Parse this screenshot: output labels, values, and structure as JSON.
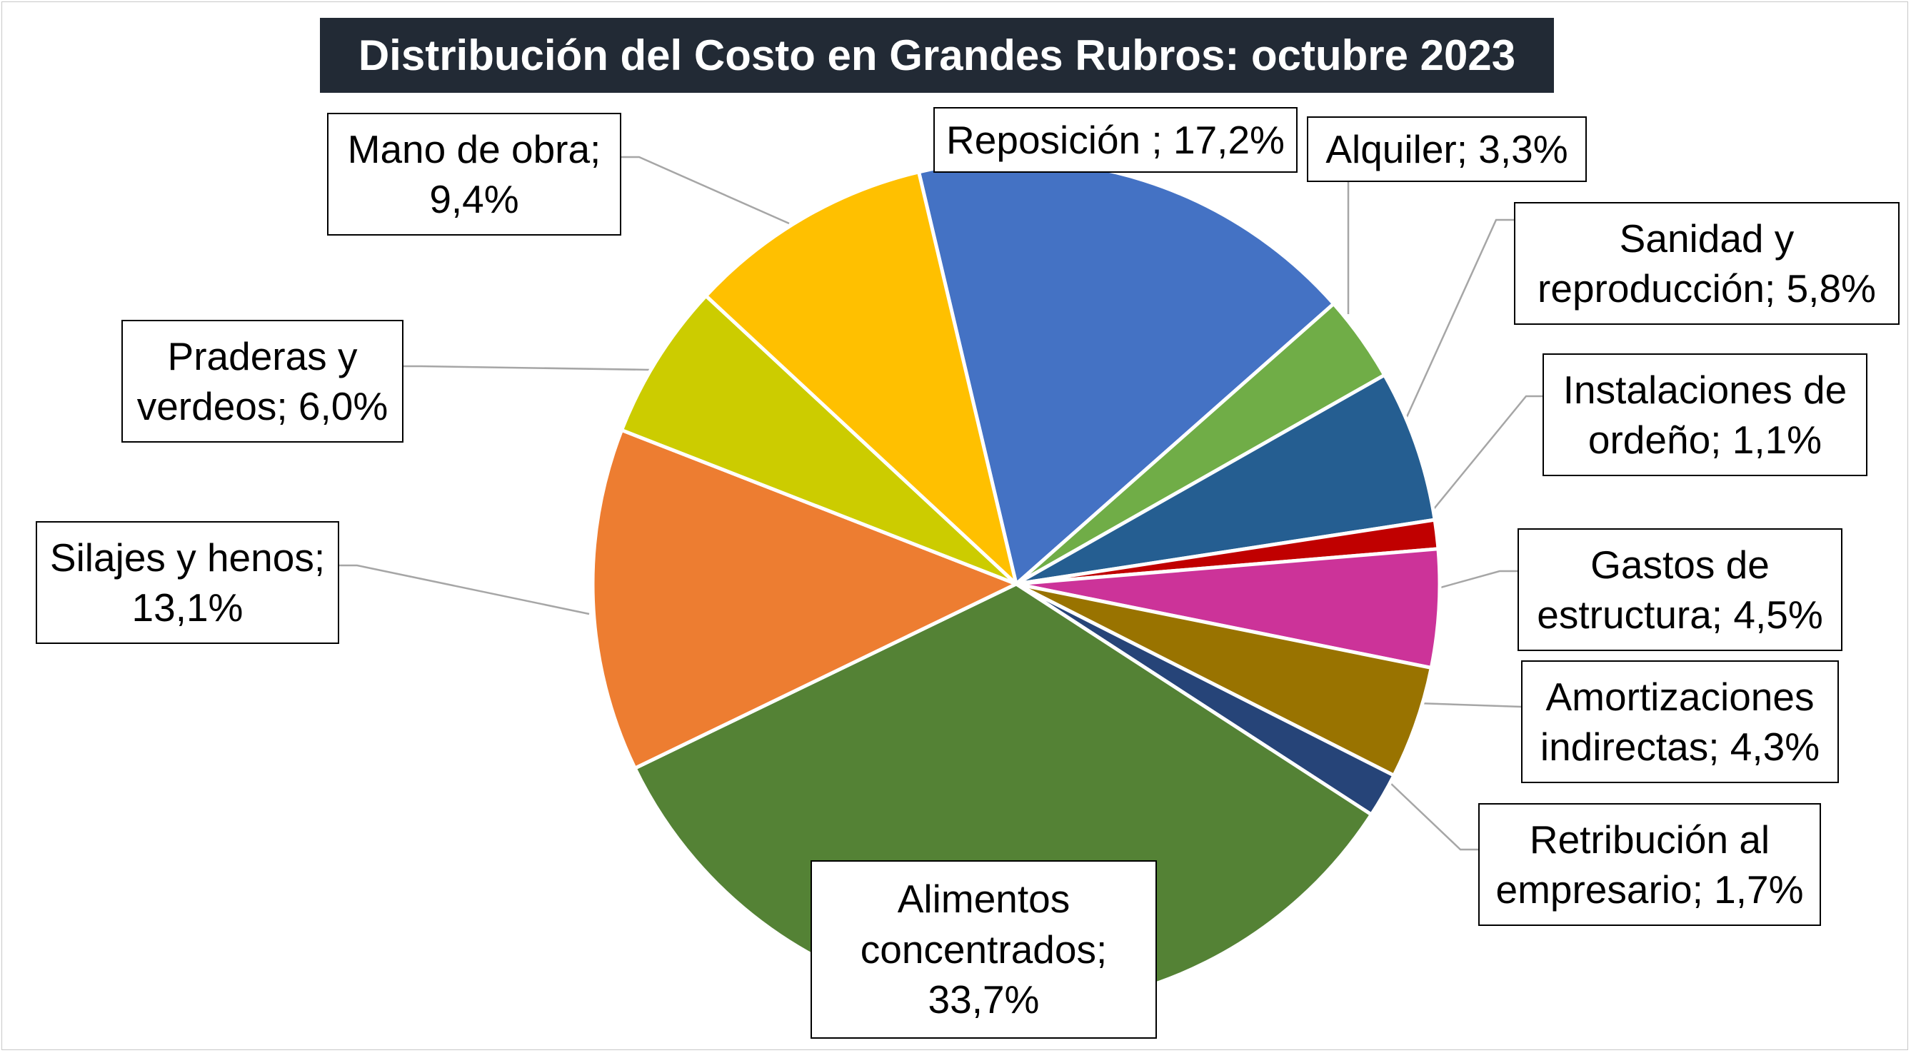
{
  "chart_data": {
    "type": "pie",
    "title": "Distribución del Costo en Grandes Rubros: octubre 2023",
    "slices": [
      {
        "name": "Reposición",
        "value": 17.2,
        "label_lines": [
          "Reposición ; 17,2%"
        ],
        "color": "#4472c4"
      },
      {
        "name": "Alquiler",
        "value": 3.3,
        "label_lines": [
          "Alquiler; 3,3%"
        ],
        "color": "#70ad47"
      },
      {
        "name": "Sanidad y reproducción",
        "value": 5.8,
        "label_lines": [
          "Sanidad y",
          "reproducción; 5,8%"
        ],
        "color": "#255e91"
      },
      {
        "name": "Instalaciones de ordeño",
        "value": 1.1,
        "label_lines": [
          "Instalaciones de",
          "ordeño; 1,1%"
        ],
        "color": "#c00000"
      },
      {
        "name": "Gastos de estructura",
        "value": 4.5,
        "label_lines": [
          "Gastos de",
          "estructura; 4,5%"
        ],
        "color": "#cc3399"
      },
      {
        "name": "Amortizaciones indirectas",
        "value": 4.3,
        "label_lines": [
          "Amortizaciones",
          "indirectas; 4,3%"
        ],
        "color": "#997300"
      },
      {
        "name": "Retribución al empresario",
        "value": 1.7,
        "label_lines": [
          "Retribución al",
          "empresario; 1,7%"
        ],
        "color": "#264478"
      },
      {
        "name": "Alimentos concentrados",
        "value": 33.7,
        "label_lines": [
          "Alimentos",
          "concentrados;",
          "33,7%"
        ],
        "color": "#548235"
      },
      {
        "name": "Silajes y henos",
        "value": 13.1,
        "label_lines": [
          "Silajes y henos;",
          "13,1%"
        ],
        "color": "#ed7d31"
      },
      {
        "name": "Praderas y verdeos",
        "value": 6.0,
        "label_lines": [
          "Praderas y",
          "verdeos; 6,0%"
        ],
        "color": "#cccc00"
      },
      {
        "name": "Mano de obra",
        "value": 9.4,
        "label_lines": [
          "Mano de obra;",
          "9,4%"
        ],
        "color": "#ffc000"
      }
    ]
  }
}
